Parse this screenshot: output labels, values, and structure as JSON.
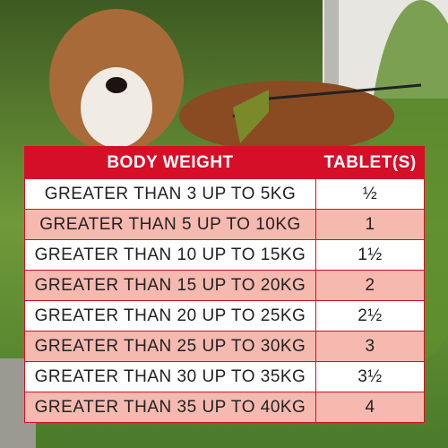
{
  "table": {
    "columns": [
      "BODY WEIGHT",
      "TABLET(S)"
    ],
    "rows": [
      [
        "GREATER THAN 3 UP TO 5KG",
        "½"
      ],
      [
        "GREATER THAN 5 UP TO 10KG",
        "1"
      ],
      [
        "GREATER THAN 10 UP TO 15KG",
        "1½"
      ],
      [
        "GREATER THAN 15 UP TO 20KG",
        "2"
      ],
      [
        "GREATER THAN 20 UP TO 25KG",
        "2½"
      ],
      [
        "GREATER THAN 25 UP TO 30KG",
        "3"
      ],
      [
        "GREATER THAN 30 UP TO 35KG",
        "3½"
      ],
      [
        "GREATER THAN 35 UP TO 40KG",
        "4"
      ]
    ]
  }
}
